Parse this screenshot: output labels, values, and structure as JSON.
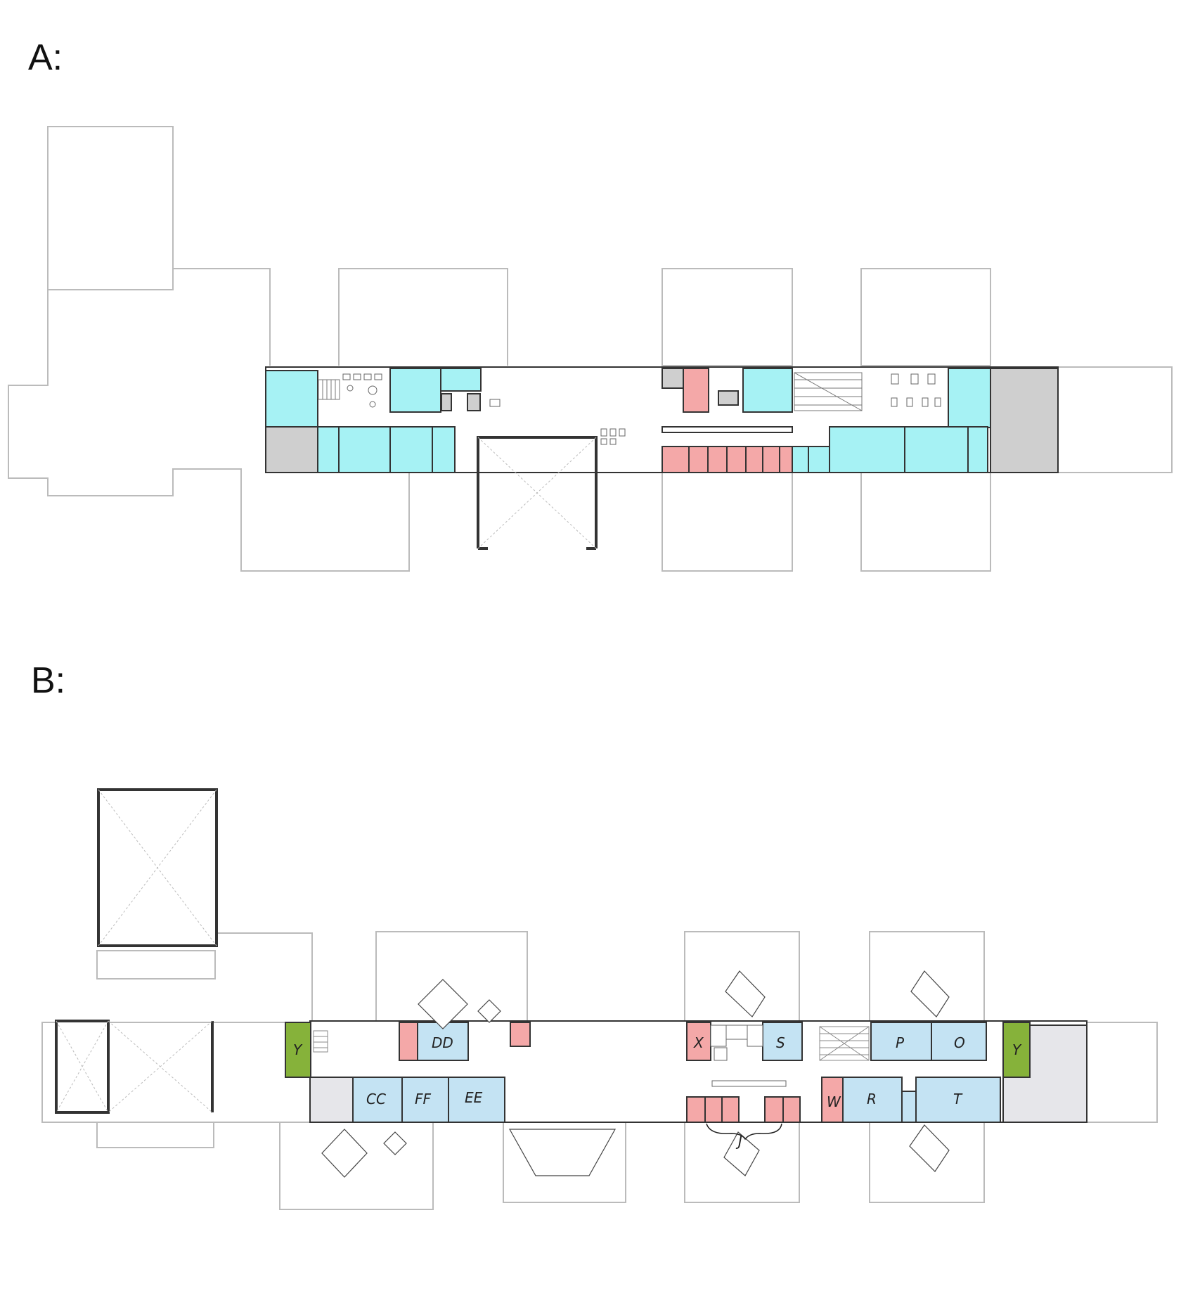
{
  "plan_a": {
    "label": "A:"
  },
  "plan_b": {
    "label": "B:",
    "room_labels": {
      "dd": "DD",
      "cc": "CC",
      "ff": "FF",
      "ee": "EE",
      "x": "X",
      "s": "S",
      "p": "P",
      "o": "O",
      "y_left": "Y",
      "y_right": "Y",
      "w": "W",
      "r": "R",
      "t": "T",
      "j": "J"
    }
  },
  "colors": {
    "cyan_room": "#A6F2F4",
    "blue_room": "#C4E3F3",
    "red_room": "#F4A8A8",
    "gray_room": "#CFCFCF",
    "green_room": "#86B23A",
    "wall": "#333333",
    "outline": "#BBBBBB"
  }
}
